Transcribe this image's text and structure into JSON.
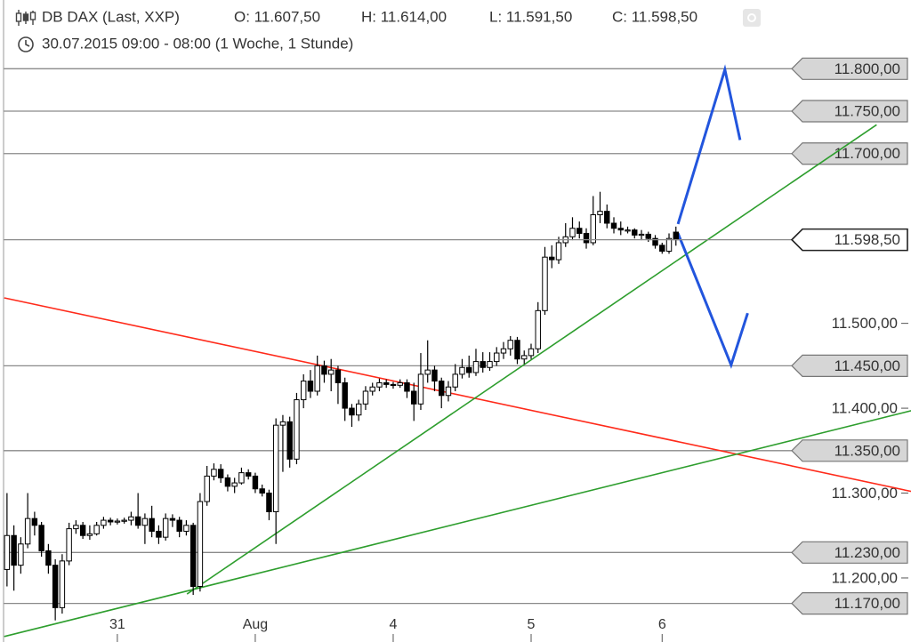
{
  "chart_data": {
    "type": "candlestick",
    "title": "DB DAX (Last, XXP)",
    "ohlc_labels": [
      "O: 11.607,50",
      "H: 11.614,00",
      "L: 11.591,50",
      "C: 11.598,50"
    ],
    "subtitle": "30.07.2015 09:00 - 08:00 (1 Woche, 1 Stunde)",
    "x": [
      0,
      1,
      2,
      3,
      4,
      5,
      6,
      7,
      8,
      9,
      10,
      11,
      12,
      13,
      14,
      15,
      16,
      17,
      18,
      19,
      20,
      21,
      22,
      23,
      24,
      25,
      26,
      27,
      28,
      29,
      30,
      31,
      32,
      33,
      34,
      35,
      36,
      37,
      38,
      39,
      40,
      41,
      42,
      43,
      44,
      45,
      46,
      47,
      48,
      49,
      50,
      51,
      52,
      53,
      54,
      55,
      56,
      57,
      58,
      59,
      60,
      61,
      62,
      63,
      64,
      65,
      66,
      67,
      68,
      69,
      70,
      71,
      72,
      73,
      74,
      75,
      76,
      77,
      78,
      79,
      80,
      81,
      82,
      83,
      84,
      85,
      86,
      87,
      88,
      89,
      90,
      91,
      92,
      93,
      94,
      95,
      96,
      97
    ],
    "open": [
      11210,
      11250,
      11215,
      11240,
      11270,
      11262,
      11232,
      11215,
      11165,
      11220,
      11258,
      11262,
      11250,
      11252,
      11262,
      11268,
      11266,
      11267,
      11268,
      11272,
      11262,
      11270,
      11255,
      11248,
      11270,
      11268,
      11255,
      11262,
      11190,
      11290,
      11320,
      11328,
      11318,
      11308,
      11312,
      11324,
      11320,
      11305,
      11300,
      11278,
      11380,
      11384,
      11340,
      11410,
      11432,
      11420,
      11450,
      11440,
      11445,
      11430,
      11400,
      11392,
      11405,
      11420,
      11425,
      11430,
      11428,
      11427,
      11430,
      11420,
      11405,
      11440,
      11445,
      11432,
      11415,
      11425,
      11440,
      11448,
      11442,
      11455,
      11448,
      11455,
      11465,
      11470,
      11480,
      11458,
      11462,
      11470,
      11515,
      11578,
      11575,
      11595,
      11602,
      11612,
      11606,
      11595,
      11628,
      11632,
      11618,
      11612,
      11610,
      11610,
      11604,
      11605,
      11600,
      11592,
      11585,
      11607.5
    ],
    "high": [
      11300,
      11262,
      11248,
      11300,
      11278,
      11266,
      11240,
      11222,
      11228,
      11265,
      11268,
      11266,
      11262,
      11266,
      11272,
      11271,
      11270,
      11271,
      11278,
      11300,
      11276,
      11285,
      11262,
      11276,
      11275,
      11272,
      11268,
      11265,
      11300,
      11332,
      11335,
      11334,
      11322,
      11318,
      11330,
      11328,
      11324,
      11310,
      11304,
      11388,
      11392,
      11390,
      11418,
      11440,
      11445,
      11462,
      11456,
      11458,
      11450,
      11436,
      11405,
      11410,
      11426,
      11430,
      11435,
      11434,
      11431,
      11434,
      11434,
      11430,
      11465,
      11480,
      11450,
      11436,
      11432,
      11452,
      11458,
      11462,
      11470,
      11466,
      11466,
      11472,
      11478,
      11485,
      11484,
      11468,
      11476,
      11525,
      11590,
      11592,
      11602,
      11618,
      11625,
      11620,
      11612,
      11650,
      11655,
      11640,
      11625,
      11620,
      11614,
      11612,
      11610,
      11608,
      11604,
      11595,
      11606,
      11614
    ],
    "low": [
      11190,
      11185,
      11205,
      11235,
      11250,
      11225,
      11205,
      11150,
      11158,
      11215,
      11252,
      11246,
      11245,
      11250,
      11258,
      11262,
      11263,
      11264,
      11262,
      11258,
      11240,
      11248,
      11240,
      11244,
      11260,
      11248,
      11250,
      11180,
      11184,
      11285,
      11315,
      11312,
      11302,
      11300,
      11310,
      11316,
      11300,
      11296,
      11268,
      11240,
      11325,
      11330,
      11334,
      11400,
      11412,
      11415,
      11430,
      11420,
      11405,
      11385,
      11378,
      11385,
      11398,
      11415,
      11420,
      11424,
      11423,
      11424,
      11412,
      11385,
      11398,
      11430,
      11420,
      11400,
      11408,
      11420,
      11435,
      11436,
      11438,
      11442,
      11444,
      11450,
      11458,
      11462,
      11452,
      11452,
      11458,
      11465,
      11510,
      11565,
      11570,
      11590,
      11598,
      11600,
      11588,
      11592,
      11618,
      11612,
      11606,
      11604,
      11606,
      11600,
      11598,
      11596,
      11588,
      11582,
      11582,
      11591.5
    ],
    "close": [
      11250,
      11215,
      11240,
      11270,
      11262,
      11232,
      11215,
      11165,
      11220,
      11258,
      11262,
      11250,
      11252,
      11262,
      11268,
      11266,
      11267,
      11268,
      11272,
      11262,
      11270,
      11255,
      11248,
      11270,
      11268,
      11255,
      11262,
      11190,
      11290,
      11320,
      11328,
      11318,
      11308,
      11312,
      11324,
      11320,
      11305,
      11300,
      11278,
      11380,
      11384,
      11340,
      11410,
      11432,
      11420,
      11450,
      11440,
      11445,
      11430,
      11400,
      11392,
      11405,
      11420,
      11425,
      11430,
      11428,
      11427,
      11430,
      11420,
      11405,
      11440,
      11445,
      11432,
      11415,
      11425,
      11440,
      11448,
      11442,
      11455,
      11448,
      11455,
      11465,
      11470,
      11480,
      11458,
      11462,
      11470,
      11515,
      11578,
      11575,
      11595,
      11602,
      11612,
      11606,
      11595,
      11628,
      11632,
      11618,
      11612,
      11610,
      11610,
      11604,
      11605,
      11600,
      11592,
      11585,
      11600,
      11598.5
    ],
    "up_color": "#ffffff",
    "down_color": "#000000",
    "xlim": [
      -0.5,
      113.8
    ],
    "xticks": [
      {
        "value": 16,
        "label": "31"
      },
      {
        "value": 36,
        "label": "Aug"
      },
      {
        "value": 56,
        "label": "4"
      },
      {
        "value": 76,
        "label": "5"
      },
      {
        "value": 95,
        "label": "6"
      }
    ],
    "ylim": [
      11135,
      11881
    ],
    "yticks": [
      {
        "value": 11500,
        "label": "11.500,00"
      },
      {
        "value": 11400,
        "label": "11.400,00"
      },
      {
        "value": 11300,
        "label": "11.300,00"
      },
      {
        "value": 11200,
        "label": "11.200,00"
      }
    ],
    "levels": [
      {
        "value": 11800,
        "label": "11.800,00"
      },
      {
        "value": 11750,
        "label": "11.750,00"
      },
      {
        "value": 11700,
        "label": "11.700,00"
      },
      {
        "value": 11450,
        "label": "11.450,00"
      },
      {
        "value": 11350,
        "label": "11.350,00"
      },
      {
        "value": 11230,
        "label": "11.230,00"
      },
      {
        "value": 11170,
        "label": "11.170,00"
      }
    ],
    "last_price": {
      "value": 11598.5,
      "label": "11.598,50"
    },
    "trendlines": [
      {
        "color": "#ff2a1a",
        "points": [
          [
            -0.4,
            11530
          ],
          [
            131.1,
            11302
          ]
        ]
      },
      {
        "color": "#2e9e2e",
        "points": [
          [
            26.1,
            11181
          ],
          [
            126.1,
            11734
          ]
        ]
      },
      {
        "color": "#2e9e2e",
        "points": [
          [
            -0.4,
            11131
          ],
          [
            131.1,
            11397
          ]
        ]
      },
      {
        "color": "#2255dd",
        "points": [
          [
            97.3,
            11617
          ],
          [
            104.1,
            11799
          ],
          [
            106.3,
            11716
          ]
        ]
      },
      {
        "color": "#2255dd",
        "points": [
          [
            97.3,
            11606
          ],
          [
            105,
            11451
          ],
          [
            107.4,
            11512
          ]
        ]
      }
    ]
  }
}
